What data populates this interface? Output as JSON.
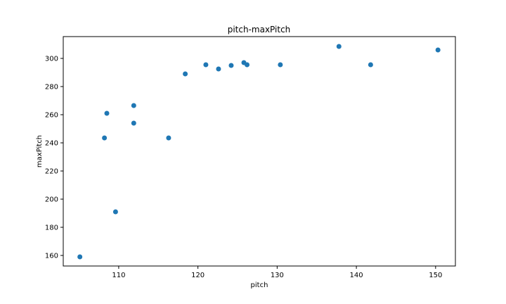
{
  "chart_data": {
    "type": "scatter",
    "title": "pitch-maxPitch",
    "xlabel": "pitch",
    "ylabel": "maxPitch",
    "xlim": [
      103.0,
      152.5
    ],
    "ylim": [
      152.5,
      315.5
    ],
    "xticks": [
      110,
      120,
      130,
      140,
      150
    ],
    "yticks": [
      160,
      180,
      200,
      220,
      240,
      260,
      280,
      300
    ],
    "grid": false,
    "marker_color": "#1f77b4",
    "points": [
      {
        "x": 105.1,
        "y": 159
      },
      {
        "x": 108.2,
        "y": 243.5
      },
      {
        "x": 108.5,
        "y": 261
      },
      {
        "x": 109.6,
        "y": 191
      },
      {
        "x": 111.9,
        "y": 266.5
      },
      {
        "x": 111.9,
        "y": 254
      },
      {
        "x": 116.3,
        "y": 243.5
      },
      {
        "x": 118.4,
        "y": 289
      },
      {
        "x": 121.0,
        "y": 295.5
      },
      {
        "x": 122.6,
        "y": 292.5
      },
      {
        "x": 124.2,
        "y": 295
      },
      {
        "x": 125.8,
        "y": 297
      },
      {
        "x": 126.2,
        "y": 295.5
      },
      {
        "x": 130.4,
        "y": 295.5
      },
      {
        "x": 137.8,
        "y": 308.5
      },
      {
        "x": 141.8,
        "y": 295.5
      },
      {
        "x": 150.3,
        "y": 306
      }
    ]
  }
}
